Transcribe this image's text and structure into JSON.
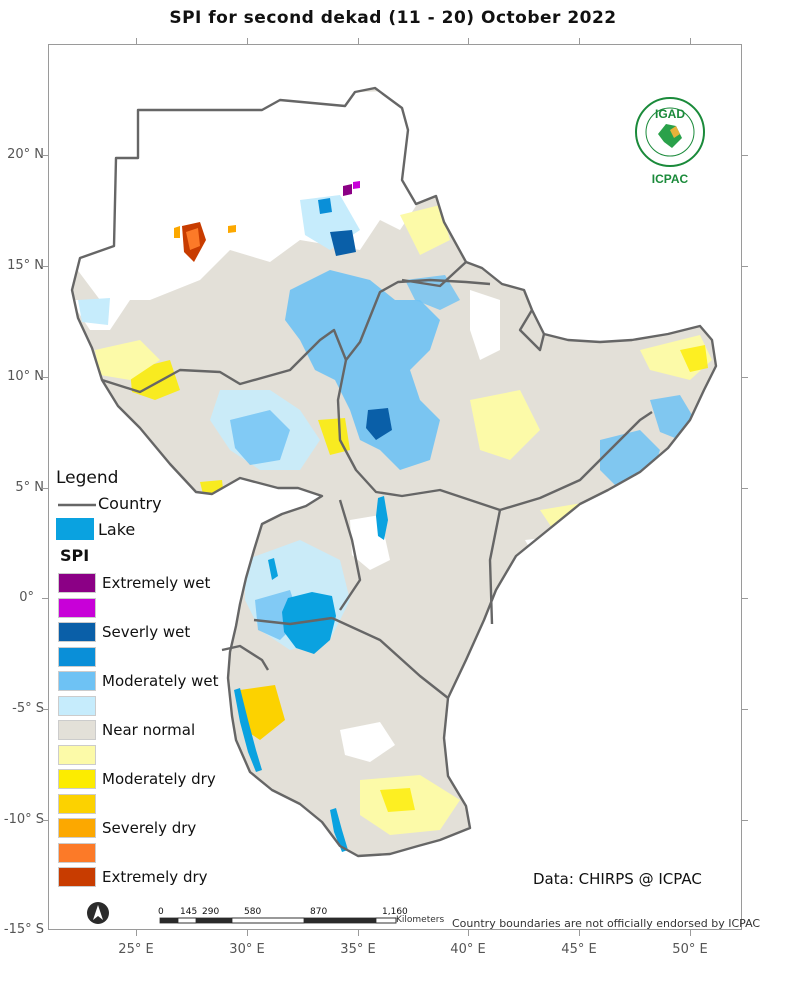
{
  "title": "SPI   for    second  dekad (11 - 20)  October 2022",
  "latitude_labels": [
    "20° N",
    "15° N",
    "10° N",
    "5° N",
    "0°",
    "-5° S",
    "-10° S",
    "-15° S"
  ],
  "longitude_labels": [
    "25° E",
    "30° E",
    "35° E",
    "40° E",
    "45° E",
    "50° E"
  ],
  "legend": {
    "title": "Legend",
    "country_label": "Country",
    "lake_label": "Lake",
    "spi_title": "SPI",
    "classes": [
      {
        "label": "Extremely wet",
        "color": "#8b0085"
      },
      {
        "label": "",
        "color": "#c800d8"
      },
      {
        "label": "Severly wet",
        "color": "#0a5fa8"
      },
      {
        "label": "",
        "color": "#0a8fd8"
      },
      {
        "label": "Moderately wet",
        "color": "#6ec2f4"
      },
      {
        "label": "",
        "color": "#c6ecfc"
      },
      {
        "label": "Near normal",
        "color": "#e3e0d8"
      },
      {
        "label": "",
        "color": "#fcfaa8"
      },
      {
        "label": "Moderately dry",
        "color": "#fcec00"
      },
      {
        "label": "",
        "color": "#fcd200"
      },
      {
        "label": "Severely dry",
        "color": "#fca800"
      },
      {
        "label": "",
        "color": "#fc7a28"
      },
      {
        "label": "Extremely dry",
        "color": "#c83c00"
      }
    ],
    "country_line_color": "#666666",
    "lake_color": "#0aa2e0"
  },
  "logo": {
    "top_text": "IGAD",
    "bottom_text": "ICPAC",
    "color": "#1a8a3a"
  },
  "data_credit": "Data: CHIRPS @ ICPAC",
  "scale_bar": {
    "ticks": [
      "0",
      "145",
      "290",
      "580",
      "870",
      "1,160"
    ],
    "unit": "Kilometers"
  },
  "disclaimer": "Country boundaries are not officially endorsed by ICPAC",
  "north_arrow": "north-arrow-icon"
}
